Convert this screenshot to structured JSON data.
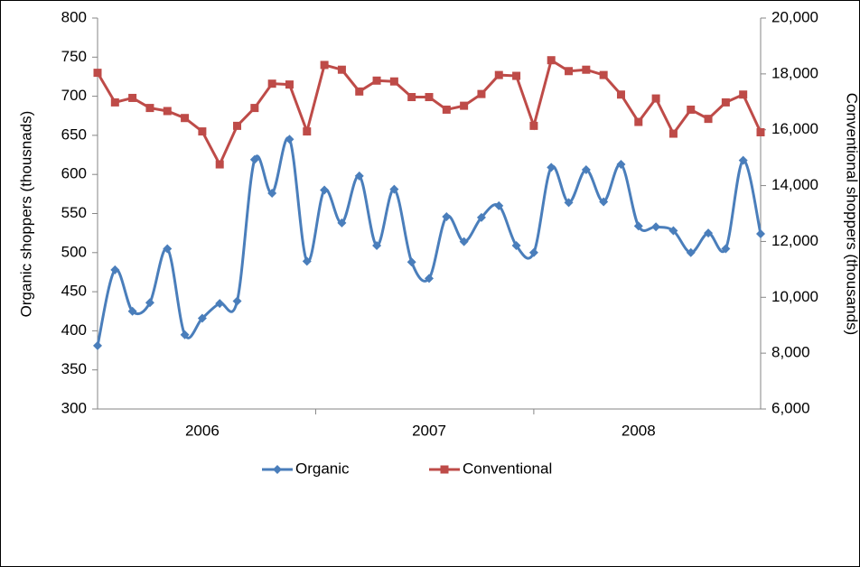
{
  "chart_data": {
    "type": "line",
    "categories": [
      null,
      null,
      null,
      null,
      null,
      null,
      "2006",
      null,
      null,
      null,
      null,
      null,
      null,
      null,
      null,
      null,
      null,
      null,
      null,
      "2007",
      null,
      null,
      null,
      null,
      null,
      null,
      null,
      null,
      null,
      null,
      null,
      "2008",
      null,
      null,
      null,
      null,
      null,
      null,
      null
    ],
    "ylabel": "Organic shoppers (thousnads)",
    "y2label": "Conventional shoppers (thousands)",
    "ylim": [
      300,
      800
    ],
    "yticks": [
      300,
      350,
      400,
      450,
      500,
      550,
      600,
      650,
      700,
      750,
      800
    ],
    "y2lim": [
      6000,
      20000
    ],
    "y2ticks": [
      {
        "value": 6000,
        "label": "6,000"
      },
      {
        "value": 8000,
        "label": "8,000"
      },
      {
        "value": 10000,
        "label": "10,000"
      },
      {
        "value": 12000,
        "label": "12,000"
      },
      {
        "value": 14000,
        "label": "14,000"
      },
      {
        "value": 16000,
        "label": "16,000"
      },
      {
        "value": 18000,
        "label": "18,000"
      },
      {
        "value": 20000,
        "label": "20,000"
      }
    ],
    "grid": false,
    "legend": "bottom",
    "series": [
      {
        "name": "Organic",
        "color": "#4a7ebb",
        "marker": "diamond",
        "smooth": true,
        "values": [
          381,
          478,
          425,
          436,
          505,
          395,
          416,
          435,
          438,
          619,
          576,
          645,
          489,
          580,
          538,
          598,
          509,
          581,
          488,
          467,
          546,
          514,
          545,
          560,
          509,
          500,
          609,
          564,
          606,
          565,
          613,
          534,
          533,
          528,
          500,
          525,
          505,
          618,
          524
        ]
      },
      {
        "name": "Conventional",
        "color": "#be4b48",
        "marker": "square",
        "smooth": false,
        "axis": "y2",
        "values": [
          18040,
          16980,
          17140,
          16780,
          16670,
          16420,
          15940,
          14760,
          16140,
          16780,
          17650,
          17620,
          15940,
          18320,
          18150,
          17370,
          17760,
          17730,
          17170,
          17170,
          16720,
          16860,
          17280,
          17960,
          17930,
          16140,
          18490,
          18100,
          18150,
          17960,
          17260,
          16280,
          17120,
          15860,
          16720,
          16390,
          16980,
          17260,
          15910
        ]
      }
    ]
  }
}
